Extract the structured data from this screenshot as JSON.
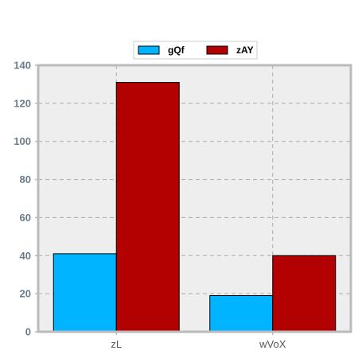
{
  "chart_data": {
    "type": "bar",
    "categories": [
      "zL",
      "wVoX"
    ],
    "series": [
      {
        "name": "gQf",
        "values": [
          41,
          19
        ],
        "color": "#00b4ff"
      },
      {
        "name": "zAY",
        "values": [
          131,
          40
        ],
        "color": "#b30000"
      }
    ],
    "ylim": [
      0,
      140
    ],
    "yticks": [
      0,
      20,
      40,
      60,
      80,
      100,
      120,
      140
    ],
    "title": "",
    "xlabel": "",
    "ylabel": "",
    "grid": true,
    "legend_position": "top-center",
    "background_color": "#eeeeee"
  }
}
